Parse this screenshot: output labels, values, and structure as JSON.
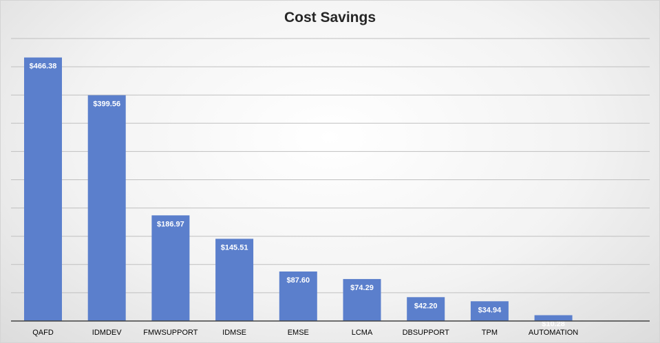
{
  "chart_data": {
    "type": "bar",
    "title": "Cost Savings",
    "xlabel": "",
    "ylabel": "",
    "categories": [
      "QAFD",
      "IDMDEV",
      "FMWSUPPORT",
      "IDMSE",
      "EMSE",
      "LCMA",
      "DBSUPPORT",
      "TPM",
      "AUTOMATION"
    ],
    "values": [
      466.38,
      399.56,
      186.97,
      145.51,
      87.6,
      74.29,
      42.2,
      34.94,
      10.28
    ],
    "data_labels": [
      "$466.38",
      "$399.56",
      "$186.97",
      "$145.51",
      "$87.60",
      "$74.29",
      "$42.20",
      "$34.94",
      "$10.28"
    ],
    "ylim": [
      0,
      500
    ],
    "grid": true,
    "legend": "none",
    "bar_color": "#5B7FCC",
    "label_color": "#ffffff"
  }
}
